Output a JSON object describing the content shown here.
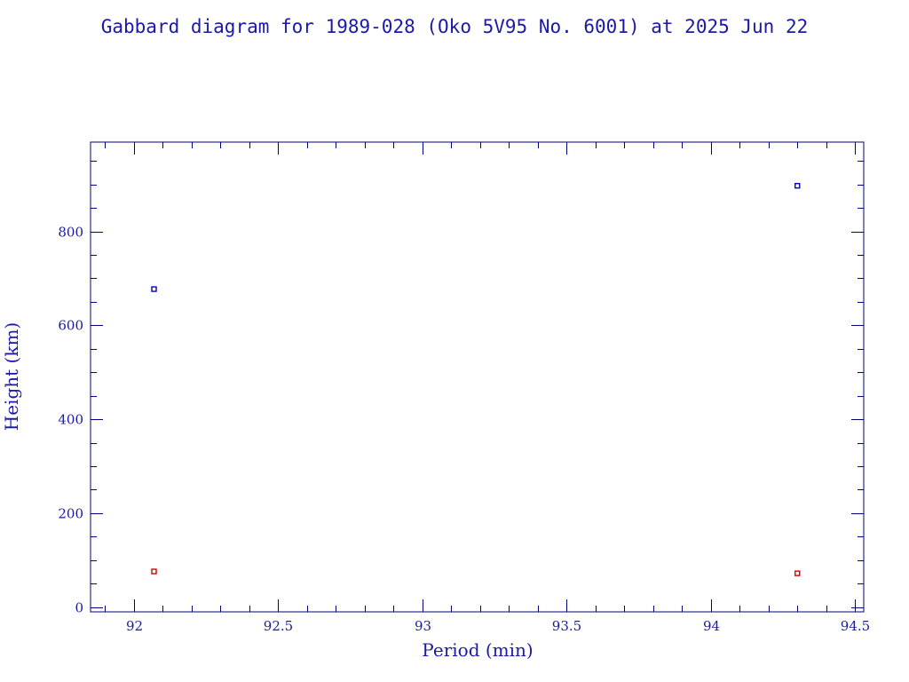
{
  "chart_data": {
    "type": "scatter",
    "title": "Gabbard diagram for 1989-028 (Oko 5V95 No. 6001) at 2025 Jun 22",
    "xlabel": "Period (min)",
    "ylabel": "Height (km)",
    "xlim": [
      91.85,
      94.53
    ],
    "ylim": [
      -10,
      990
    ],
    "x_ticks": [
      "92",
      "92.5",
      "93",
      "93.5",
      "94",
      "94.5"
    ],
    "x_tick_values": [
      92,
      92.5,
      93,
      93.5,
      94,
      94.5
    ],
    "x_minor_step": 0.1,
    "y_ticks": [
      "0",
      "200",
      "400",
      "600",
      "800"
    ],
    "y_tick_values": [
      0,
      200,
      400,
      600,
      800
    ],
    "y_minor_step": 50,
    "grid": false,
    "series": [
      {
        "color": "#0000c0",
        "x": [
          92.07,
          94.3
        ],
        "y": [
          677,
          897
        ]
      },
      {
        "color": "#d00000",
        "x": [
          92.07,
          94.3
        ],
        "y": [
          76,
          72
        ]
      }
    ]
  },
  "colors": {
    "frame": "#00007f",
    "text": "#1a1aa6"
  }
}
